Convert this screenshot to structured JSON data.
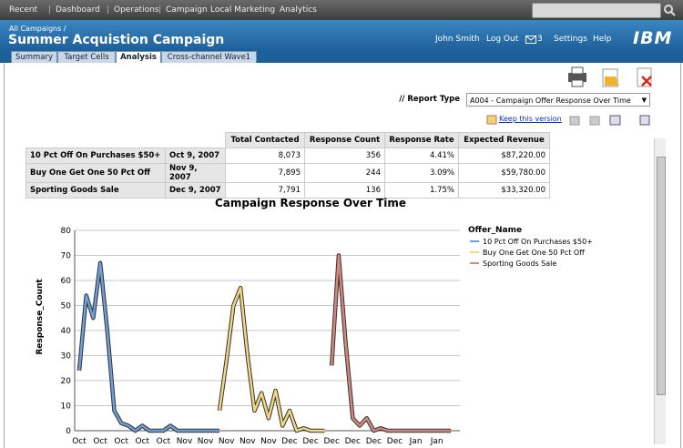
{
  "nav": [
    "Recent",
    "Dashboard",
    "Operations",
    "Campaign",
    "Local Marketing",
    "Analytics"
  ],
  "header": {
    "breadcrumb": "All Campaigns /",
    "title": "Summer Acquistion Campaign",
    "user": "John Smith",
    "logout": "Log Out",
    "messages": "3",
    "settings": "Settings",
    "help": "Help",
    "logo": "IBM"
  },
  "tabs": [
    "Summary",
    "Target Cells",
    "Analysis",
    "Cross-channel Wave1"
  ],
  "report": {
    "label": "// Report Type",
    "selected": "A004 - Campaign Offer Response Over Time",
    "keep": "Keep this version"
  },
  "table": {
    "header": [
      "Total Contacted",
      "Response Count",
      "Response Rate",
      "Expected Revenue"
    ],
    "rows": [
      [
        "10 Pct Off On Purchases $50+",
        "Oct 9, 2007",
        "8,073",
        "356",
        "4.41%",
        "$87,220.00"
      ],
      [
        "Buy One Get One 50 Pct Off",
        "Nov 9, 2007",
        "7,895",
        "244",
        "3.09%",
        "$59,780.00"
      ],
      [
        "Sporting Goods Sale",
        "Dec 9, 2007",
        "7,791",
        "136",
        "1.75%",
        "$33,320.00"
      ]
    ]
  },
  "chart_data": {
    "type": "line",
    "title": "Campaign Response Over Time",
    "y_label": "Response_Count",
    "legend_title": "Offer_Name",
    "categories": [
      "Oct",
      null,
      null,
      "Oct",
      null,
      null,
      "Oct",
      null,
      null,
      "Oct",
      null,
      null,
      "Oct",
      null,
      null,
      "Nov",
      null,
      null,
      "Nov",
      null,
      null,
      "Nov",
      null,
      null,
      "Nov",
      null,
      null,
      "Nov",
      null,
      null,
      "Dec",
      null,
      null,
      "Dec",
      null,
      null,
      "Dec",
      null,
      null,
      "Dec",
      null,
      null,
      "Dec",
      null,
      null,
      "Dec",
      null,
      null,
      "Jan",
      null,
      null,
      "Jan",
      null,
      null
    ],
    "series": [
      {
        "name": "10 Pct Off On Purchases $50+",
        "color": "#6d9fd9",
        "values": [
          24,
          54,
          45,
          67,
          40,
          8,
          3,
          2,
          0,
          2,
          0,
          0,
          0,
          2,
          0,
          0,
          0,
          0,
          0,
          0,
          0,
          null,
          null,
          null,
          null,
          null,
          null,
          null,
          null,
          null,
          null,
          null,
          null,
          null,
          null,
          null,
          null,
          null,
          null,
          null,
          null,
          null,
          null,
          null,
          null,
          null,
          null,
          null,
          null,
          null,
          null,
          null,
          null,
          null
        ]
      },
      {
        "name": "Buy One Get One 50 Pct Off",
        "color": "#f2d97f",
        "values": [
          null,
          null,
          null,
          null,
          null,
          null,
          null,
          null,
          null,
          null,
          null,
          null,
          null,
          null,
          null,
          null,
          null,
          null,
          null,
          null,
          8,
          28,
          50,
          57,
          30,
          8,
          15,
          5,
          16,
          2,
          8,
          0,
          1,
          0,
          0,
          0,
          null,
          null,
          null,
          null,
          null,
          null,
          null,
          null,
          null,
          null,
          null,
          null,
          null,
          null,
          null,
          null,
          null,
          null
        ]
      },
      {
        "name": "Sporting Goods Sale",
        "color": "#d8877c",
        "values": [
          null,
          null,
          null,
          null,
          null,
          null,
          null,
          null,
          null,
          null,
          null,
          null,
          null,
          null,
          null,
          null,
          null,
          null,
          null,
          null,
          null,
          null,
          null,
          null,
          null,
          null,
          null,
          null,
          null,
          null,
          null,
          null,
          null,
          null,
          null,
          null,
          26,
          70,
          35,
          5,
          2,
          5,
          0,
          1,
          0,
          0,
          0,
          0,
          0,
          0,
          0,
          0,
          0,
          0
        ]
      }
    ],
    "ylim": [
      0,
      80
    ],
    "yticks": [
      0,
      10,
      20,
      30,
      40,
      50,
      60,
      70,
      80
    ],
    "grid": true
  }
}
